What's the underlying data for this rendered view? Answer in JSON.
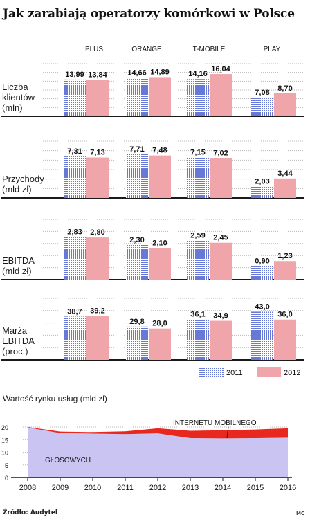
{
  "title": "Jak zarabiają operatorzy komórkowi w Polsce",
  "source": "Źródło: Audytel",
  "credit": "MC",
  "colors": {
    "y2011": "#8d99e0",
    "y2012": "#f0a5ab",
    "area_voice": "#c9c4f2",
    "area_mobile": "#e8271f",
    "axis": "#1a1a1a",
    "grid": "#b9b9b9"
  },
  "chart_data": [
    {
      "type": "bar",
      "title": "Liczba klientów (mln)",
      "label_lines": [
        "Liczba",
        "klientów",
        "(mln)"
      ],
      "categories": [
        "PLUS",
        "ORANGE",
        "T-MOBILE",
        "PLAY"
      ],
      "series": [
        {
          "name": "2011",
          "values": [
            13.99,
            14.66,
            14.16,
            7.08
          ],
          "labels": [
            "13,99",
            "14,66",
            "14,16",
            "7,08"
          ]
        },
        {
          "name": "2012",
          "values": [
            13.84,
            14.89,
            16.04,
            8.7
          ],
          "labels": [
            "13,84",
            "14,89",
            "16,04",
            "8,70"
          ]
        }
      ],
      "ylim": [
        0,
        20
      ]
    },
    {
      "type": "bar",
      "title": "Przychody (mld zł)",
      "label_lines": [
        "Przychody",
        "(mld zł)"
      ],
      "categories": [
        "PLUS",
        "ORANGE",
        "T-MOBILE",
        "PLAY"
      ],
      "series": [
        {
          "name": "2011",
          "values": [
            7.31,
            7.71,
            7.15,
            2.03
          ],
          "labels": [
            "7,31",
            "7,71",
            "7,15",
            "2,03"
          ]
        },
        {
          "name": "2012",
          "values": [
            7.13,
            7.48,
            7.02,
            3.44
          ],
          "labels": [
            "7,13",
            "7,48",
            "7,02",
            "3,44"
          ]
        }
      ],
      "ylim": [
        0,
        10
      ]
    },
    {
      "type": "bar",
      "title": "EBITDA (mld zł)",
      "label_lines": [
        "EBITDA",
        "(mld zł)"
      ],
      "categories": [
        "PLUS",
        "ORANGE",
        "T-MOBILE",
        "PLAY"
      ],
      "series": [
        {
          "name": "2011",
          "values": [
            2.83,
            2.3,
            2.59,
            0.9
          ],
          "labels": [
            "2,83",
            "2,30",
            "2,59",
            "0,90"
          ]
        },
        {
          "name": "2012",
          "values": [
            2.8,
            2.1,
            2.45,
            1.23
          ],
          "labels": [
            "2,80",
            "2,10",
            "2,45",
            "1,23"
          ]
        }
      ],
      "ylim": [
        0,
        4
      ]
    },
    {
      "type": "bar",
      "title": "Marża EBITDA (proc.)",
      "label_lines": [
        "Marża",
        "EBITDA",
        "(proc.)"
      ],
      "categories": [
        "PLUS",
        "ORANGE",
        "T-MOBILE",
        "PLAY"
      ],
      "series": [
        {
          "name": "2011",
          "values": [
            38.7,
            29.8,
            36.1,
            43.0
          ],
          "labels": [
            "38,7",
            "29,8",
            "36,1",
            "43,0"
          ]
        },
        {
          "name": "2012",
          "values": [
            39.2,
            28.0,
            34.9,
            36.0
          ],
          "labels": [
            "39,2",
            "28,0",
            "34,9",
            "36,0"
          ]
        }
      ],
      "ylim": [
        0,
        55
      ]
    },
    {
      "type": "area",
      "title": "Wartość rynku usług (mld zł)",
      "x": [
        2008,
        2009,
        2010,
        2011,
        2012,
        2013,
        2014,
        2015,
        2016
      ],
      "series": [
        {
          "name": "GŁOSOWYCH",
          "values": [
            19.8,
            17.6,
            17.4,
            17.2,
            17.5,
            15.6,
            15.5,
            15.6,
            15.8
          ]
        },
        {
          "name": "INTERNETU MOBILNEGO",
          "values": [
            0.2,
            0.6,
            0.6,
            1.1,
            2.0,
            2.9,
            3.2,
            3.4,
            3.7
          ]
        }
      ],
      "ylim": [
        0,
        20
      ],
      "yticks": [
        0,
        5,
        10,
        15,
        20
      ],
      "stacked": true,
      "grid": true
    }
  ],
  "legend": [
    "2011",
    "2012"
  ]
}
